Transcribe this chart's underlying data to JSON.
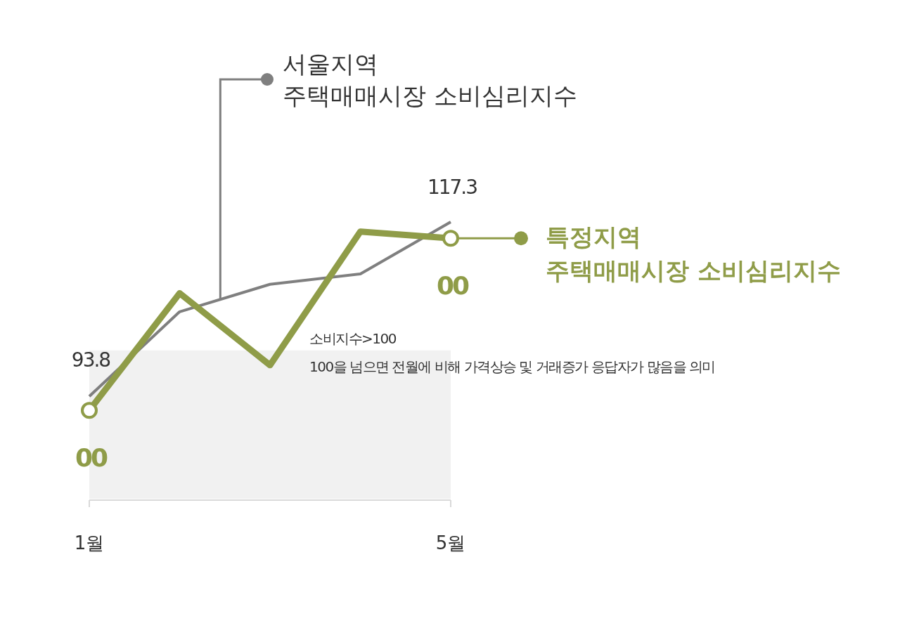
{
  "chart_data": {
    "type": "line",
    "categories": [
      "1월",
      null,
      null,
      null,
      "5월"
    ],
    "series": [
      {
        "name": "서울지역 주택매매시장 소비심리지수",
        "color": "#7f7f7f",
        "values": [
          93.8,
          105.2,
          108.9,
          110.3,
          117.3
        ],
        "value_labels": [
          "93.8",
          null,
          null,
          null,
          "117.3"
        ]
      },
      {
        "name": "특정지역 주택매매시장 소비심리지수",
        "color": "#8f9c48",
        "values": [
          91.9,
          107.7,
          98.0,
          116.0,
          115.1
        ]
      }
    ],
    "bands": [
      {
        "axis": "y",
        "from": 80,
        "to": 100,
        "color": "#f1f1f1"
      }
    ],
    "annotations": [
      "소비지수>100",
      "100을 넘으면 전월에 비해 가격상승 및 거래증가 응답자가 많음을 의미",
      {
        "text": "00",
        "x": "1월",
        "y": 91.9
      },
      {
        "text": "00",
        "x": "5월",
        "y": 115.1
      }
    ],
    "legend": "right"
  }
}
